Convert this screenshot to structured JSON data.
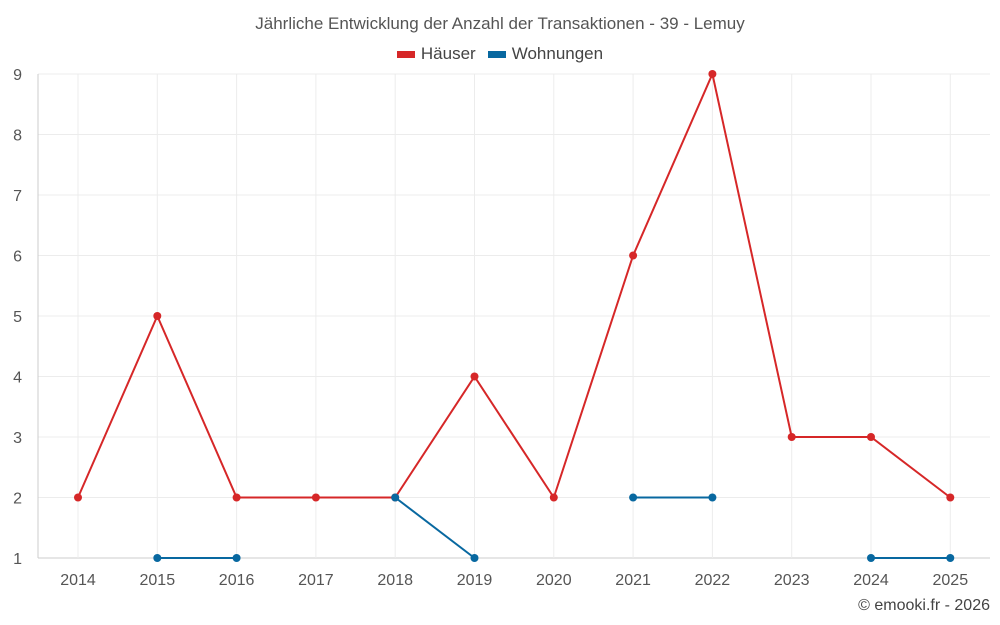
{
  "chart_data": {
    "type": "line",
    "title": "Jährliche Entwicklung der Anzahl der Transaktionen - 39 - Lemuy",
    "categories": [
      "2014",
      "2015",
      "2016",
      "2017",
      "2018",
      "2019",
      "2020",
      "2021",
      "2022",
      "2023",
      "2024",
      "2025"
    ],
    "ylim": [
      1,
      9
    ],
    "yticks": [
      1,
      2,
      3,
      4,
      5,
      6,
      7,
      8,
      9
    ],
    "grid": true,
    "legend_position": "top-center",
    "series": [
      {
        "name": "Häuser",
        "color": "#d62728",
        "values": [
          2,
          5,
          2,
          2,
          2,
          4,
          2,
          6,
          9,
          3,
          3,
          2
        ]
      },
      {
        "name": "Wohnungen",
        "color": "#0868a0",
        "values": [
          null,
          1,
          1,
          null,
          2,
          1,
          null,
          2,
          2,
          null,
          1,
          1
        ]
      }
    ]
  },
  "footer": {
    "credit": "© emooki.fr - 2026"
  }
}
